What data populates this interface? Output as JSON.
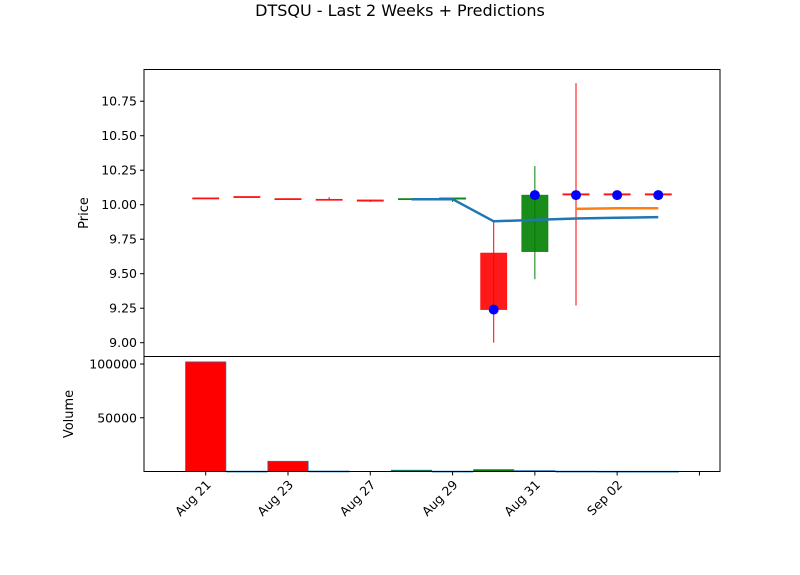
{
  "chart_data": {
    "title": "DTSQU - Last 2 Weeks + Predictions",
    "price_panel": {
      "type": "candlestick",
      "ylabel": "Price",
      "ylim": [
        8.9,
        10.98
      ],
      "yticks": [
        9.0,
        9.25,
        9.5,
        9.75,
        10.0,
        10.25,
        10.5,
        10.75
      ],
      "ytick_labels": [
        "9.00",
        "9.25",
        "9.50",
        "9.75",
        "10.00",
        "10.25",
        "10.50",
        "10.75"
      ],
      "candles": [
        {
          "x": 0,
          "open": 10.05,
          "high": 10.05,
          "low": 10.05,
          "close": 10.05,
          "color": "#ff0000"
        },
        {
          "x": 1,
          "open": 10.06,
          "high": 10.06,
          "low": 10.06,
          "close": 10.06,
          "color": "#ff0000"
        },
        {
          "x": 2,
          "open": 10.045,
          "high": 10.045,
          "low": 10.045,
          "close": 10.045,
          "color": "#ff0000"
        },
        {
          "x": 3,
          "open": 10.04,
          "high": 10.055,
          "low": 10.035,
          "close": 10.035,
          "color": "#ff0000"
        },
        {
          "x": 4,
          "open": 10.035,
          "high": 10.035,
          "low": 10.02,
          "close": 10.025,
          "color": "#ff0000"
        },
        {
          "x": 5,
          "open": 10.045,
          "high": 10.045,
          "low": 10.045,
          "close": 10.045,
          "color": "#008000"
        },
        {
          "x": 6,
          "open": 10.04,
          "high": 10.05,
          "low": 10.02,
          "close": 10.05,
          "color": "#008000"
        },
        {
          "x": 7,
          "open": 9.65,
          "high": 9.88,
          "low": 9.0,
          "close": 9.24,
          "color": "#ff0000"
        },
        {
          "x": 8,
          "open": 9.66,
          "high": 10.28,
          "low": 9.46,
          "close": 10.07,
          "color": "#008000"
        },
        {
          "x": 9,
          "open": 10.08,
          "high": 10.88,
          "low": 9.27,
          "close": 10.07,
          "color": "#ff0000"
        },
        {
          "x": 10,
          "open": 10.08,
          "high": 10.08,
          "low": 10.07,
          "close": 10.07,
          "color": "#ff0000"
        },
        {
          "x": 11,
          "open": 10.08,
          "high": 10.08,
          "low": 10.07,
          "close": 10.07,
          "color": "#ff0000"
        }
      ],
      "close_markers": {
        "color": "#0000ff",
        "points": [
          {
            "x": 7,
            "y": 9.24
          },
          {
            "x": 8,
            "y": 10.07
          },
          {
            "x": 9,
            "y": 10.07
          },
          {
            "x": 10,
            "y": 10.07
          },
          {
            "x": 11,
            "y": 10.07
          }
        ]
      },
      "lines": [
        {
          "color": "#1f77b4",
          "points": [
            {
              "x": 5,
              "y": 10.04
            },
            {
              "x": 6,
              "y": 10.04
            },
            {
              "x": 7,
              "y": 9.88
            },
            {
              "x": 8,
              "y": 9.89
            },
            {
              "x": 9,
              "y": 9.9
            },
            {
              "x": 10,
              "y": 9.905
            },
            {
              "x": 11,
              "y": 9.91
            }
          ]
        },
        {
          "color": "#ff7f0e",
          "points": [
            {
              "x": 9,
              "y": 9.97
            },
            {
              "x": 10,
              "y": 9.975
            },
            {
              "x": 11,
              "y": 9.975
            }
          ]
        }
      ]
    },
    "volume_panel": {
      "type": "bar",
      "ylabel": "Volume",
      "ylim": [
        0,
        107000
      ],
      "yticks": [
        50000,
        100000
      ],
      "ytick_labels": [
        "50000",
        "100000"
      ],
      "bars": [
        {
          "x": 0,
          "value": 102000,
          "color": "#ff0000"
        },
        {
          "x": 1,
          "value": 300,
          "color": "#ff0000"
        },
        {
          "x": 2,
          "value": 9500,
          "color": "#ff0000"
        },
        {
          "x": 3,
          "value": 400,
          "color": "#ff0000"
        },
        {
          "x": 5,
          "value": 1200,
          "color": "#008000"
        },
        {
          "x": 6,
          "value": 300,
          "color": "#008000"
        },
        {
          "x": 7,
          "value": 1800,
          "color": "#008000"
        },
        {
          "x": 8,
          "value": 800,
          "color": "#ff0000"
        },
        {
          "x": 9,
          "value": 300,
          "color": "#ff0000"
        },
        {
          "x": 10,
          "value": 200,
          "color": "#ff0000"
        },
        {
          "x": 11,
          "value": 200,
          "color": "#ff0000"
        }
      ]
    },
    "xlim": [
      -1.5,
      12.5
    ],
    "xticks": [
      {
        "x": 0,
        "label": "Aug 21"
      },
      {
        "x": 2,
        "label": "Aug 23"
      },
      {
        "x": 4,
        "label": "Aug 27"
      },
      {
        "x": 6,
        "label": "Aug 29"
      },
      {
        "x": 8,
        "label": "Aug 31"
      },
      {
        "x": 10,
        "label": "Sep 02"
      },
      {
        "x": 12,
        "label": ""
      }
    ]
  }
}
